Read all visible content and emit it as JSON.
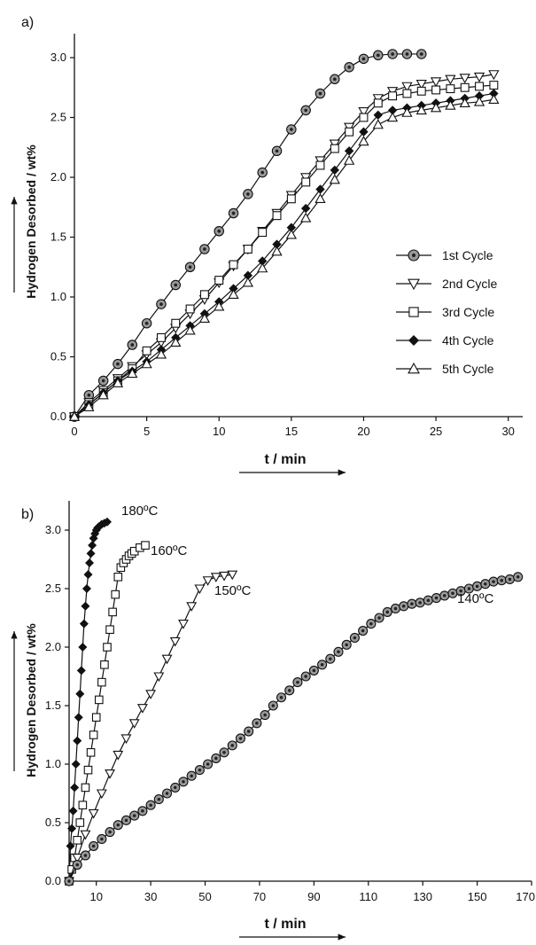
{
  "chart_data": [
    {
      "panel_label": "a)",
      "type": "line",
      "title": "",
      "xlabel": "t / min",
      "ylabel": "Hydrogen Desorbed / wt%",
      "xlim": [
        0,
        31
      ],
      "ylim": [
        0,
        3.2
      ],
      "xticks": [
        "0",
        "5",
        "10",
        "15",
        "20",
        "25",
        "30"
      ],
      "yticks": [
        "0.0",
        "0.5",
        "1.0",
        "1.5",
        "2.0",
        "2.5",
        "3.0"
      ],
      "grid": false,
      "legend_position": "right",
      "series": [
        {
          "name": "1st Cycle",
          "marker": "circle-dot",
          "x": [
            0,
            1,
            2,
            3,
            4,
            5,
            6,
            7,
            8,
            9,
            10,
            11,
            12,
            13,
            14,
            15,
            16,
            17,
            18,
            19,
            20,
            21,
            22,
            23,
            24
          ],
          "y": [
            0,
            0.18,
            0.3,
            0.44,
            0.6,
            0.78,
            0.94,
            1.1,
            1.25,
            1.4,
            1.55,
            1.7,
            1.86,
            2.04,
            2.22,
            2.4,
            2.56,
            2.7,
            2.82,
            2.92,
            2.99,
            3.02,
            3.03,
            3.03,
            3.03
          ]
        },
        {
          "name": "2nd Cycle",
          "marker": "triangle-down",
          "x": [
            0,
            1,
            2,
            3,
            4,
            5,
            6,
            7,
            8,
            9,
            10,
            11,
            12,
            13,
            14,
            15,
            16,
            17,
            18,
            19,
            20,
            21,
            22,
            23,
            24,
            25,
            26,
            27,
            28,
            29
          ],
          "y": [
            0,
            0.12,
            0.22,
            0.32,
            0.42,
            0.52,
            0.62,
            0.74,
            0.86,
            0.98,
            1.12,
            1.26,
            1.4,
            1.55,
            1.7,
            1.85,
            2.0,
            2.14,
            2.28,
            2.42,
            2.55,
            2.66,
            2.72,
            2.76,
            2.78,
            2.8,
            2.82,
            2.83,
            2.84,
            2.86
          ]
        },
        {
          "name": "3rd Cycle",
          "marker": "square",
          "x": [
            0,
            1,
            2,
            3,
            4,
            5,
            6,
            7,
            8,
            9,
            10,
            11,
            12,
            13,
            14,
            15,
            16,
            17,
            18,
            19,
            20,
            21,
            22,
            23,
            24,
            25,
            26,
            27,
            28,
            29
          ],
          "y": [
            0,
            0.1,
            0.2,
            0.3,
            0.4,
            0.55,
            0.66,
            0.78,
            0.9,
            1.02,
            1.14,
            1.27,
            1.4,
            1.54,
            1.68,
            1.82,
            1.96,
            2.1,
            2.24,
            2.38,
            2.5,
            2.62,
            2.68,
            2.7,
            2.72,
            2.73,
            2.74,
            2.75,
            2.76,
            2.77
          ]
        },
        {
          "name": "4th Cycle",
          "marker": "diamond-filled",
          "x": [
            0,
            1,
            2,
            3,
            4,
            5,
            6,
            7,
            8,
            9,
            10,
            11,
            12,
            13,
            14,
            15,
            16,
            17,
            18,
            19,
            20,
            21,
            22,
            23,
            24,
            25,
            26,
            27,
            28,
            29
          ],
          "y": [
            0,
            0.1,
            0.2,
            0.3,
            0.38,
            0.46,
            0.56,
            0.66,
            0.76,
            0.86,
            0.96,
            1.07,
            1.18,
            1.3,
            1.44,
            1.58,
            1.74,
            1.9,
            2.06,
            2.22,
            2.38,
            2.52,
            2.56,
            2.58,
            2.6,
            2.62,
            2.64,
            2.66,
            2.68,
            2.7
          ]
        },
        {
          "name": "5th Cycle",
          "marker": "triangle-up",
          "x": [
            0,
            1,
            2,
            3,
            4,
            5,
            6,
            7,
            8,
            9,
            10,
            11,
            12,
            13,
            14,
            15,
            16,
            17,
            18,
            19,
            20,
            21,
            22,
            23,
            24,
            25,
            26,
            27,
            28,
            29
          ],
          "y": [
            0,
            0.08,
            0.18,
            0.28,
            0.36,
            0.44,
            0.52,
            0.62,
            0.72,
            0.82,
            0.92,
            1.02,
            1.12,
            1.24,
            1.38,
            1.52,
            1.66,
            1.82,
            1.98,
            2.14,
            2.3,
            2.44,
            2.5,
            2.54,
            2.56,
            2.58,
            2.6,
            2.62,
            2.63,
            2.65
          ]
        }
      ]
    },
    {
      "panel_label": "b)",
      "type": "line",
      "title": "",
      "xlabel": "t / min",
      "ylabel": "Hydrogen Desorbed / wt%",
      "xlim": [
        0,
        170
      ],
      "ylim": [
        0,
        3.25
      ],
      "xticks": [
        "10",
        "30",
        "50",
        "70",
        "90",
        "110",
        "130",
        "150",
        "170"
      ],
      "yticks": [
        "0.0",
        "0.5",
        "1.0",
        "1.5",
        "2.0",
        "2.5",
        "3.0"
      ],
      "grid": false,
      "series": [
        {
          "name": "180ºC",
          "marker": "diamond-filled",
          "x": [
            0,
            0.5,
            1,
            1.5,
            2,
            2.5,
            3,
            3.5,
            4,
            4.5,
            5,
            5.5,
            6,
            6.5,
            7,
            7.5,
            8,
            8.5,
            9,
            9.5,
            10,
            10.5,
            11,
            12,
            13,
            14
          ],
          "y": [
            0,
            0.3,
            0.45,
            0.6,
            0.8,
            1.0,
            1.2,
            1.4,
            1.6,
            1.8,
            2.0,
            2.2,
            2.35,
            2.5,
            2.62,
            2.72,
            2.8,
            2.87,
            2.93,
            2.97,
            3.0,
            3.02,
            3.03,
            3.05,
            3.06,
            3.07
          ]
        },
        {
          "name": "160ºC",
          "marker": "square",
          "x": [
            0,
            1,
            2,
            3,
            4,
            5,
            6,
            7,
            8,
            9,
            10,
            11,
            12,
            13,
            14,
            15,
            16,
            17,
            18,
            19,
            20,
            21,
            22,
            23,
            24,
            26,
            28
          ],
          "y": [
            0,
            0.1,
            0.2,
            0.35,
            0.5,
            0.65,
            0.8,
            0.95,
            1.1,
            1.25,
            1.4,
            1.55,
            1.7,
            1.85,
            2.0,
            2.15,
            2.3,
            2.45,
            2.6,
            2.68,
            2.72,
            2.75,
            2.78,
            2.8,
            2.82,
            2.85,
            2.87
          ]
        },
        {
          "name": "150ºC",
          "marker": "triangle-down",
          "x": [
            0,
            3,
            6,
            9,
            12,
            15,
            18,
            21,
            24,
            27,
            30,
            33,
            36,
            39,
            42,
            45,
            48,
            51,
            54,
            57,
            60
          ],
          "y": [
            0,
            0.2,
            0.4,
            0.58,
            0.75,
            0.92,
            1.08,
            1.22,
            1.35,
            1.48,
            1.6,
            1.75,
            1.9,
            2.05,
            2.2,
            2.35,
            2.5,
            2.57,
            2.6,
            2.61,
            2.62
          ]
        },
        {
          "name": "140ºC",
          "marker": "circle-dot",
          "x": [
            0,
            3,
            6,
            9,
            12,
            15,
            18,
            21,
            24,
            27,
            30,
            33,
            36,
            39,
            42,
            45,
            48,
            51,
            54,
            57,
            60,
            63,
            66,
            69,
            72,
            75,
            78,
            81,
            84,
            87,
            90,
            93,
            96,
            99,
            102,
            105,
            108,
            111,
            114,
            117,
            120,
            123,
            126,
            129,
            132,
            135,
            138,
            141,
            144,
            147,
            150,
            153,
            156,
            159,
            162,
            165
          ],
          "y": [
            0,
            0.14,
            0.22,
            0.3,
            0.36,
            0.42,
            0.48,
            0.52,
            0.56,
            0.6,
            0.65,
            0.7,
            0.75,
            0.8,
            0.85,
            0.9,
            0.95,
            1.0,
            1.05,
            1.1,
            1.16,
            1.22,
            1.28,
            1.35,
            1.42,
            1.5,
            1.57,
            1.63,
            1.7,
            1.75,
            1.8,
            1.85,
            1.9,
            1.96,
            2.02,
            2.08,
            2.14,
            2.2,
            2.25,
            2.3,
            2.33,
            2.35,
            2.37,
            2.38,
            2.4,
            2.42,
            2.44,
            2.46,
            2.48,
            2.5,
            2.52,
            2.54,
            2.56,
            2.57,
            2.58,
            2.6
          ]
        }
      ]
    }
  ]
}
